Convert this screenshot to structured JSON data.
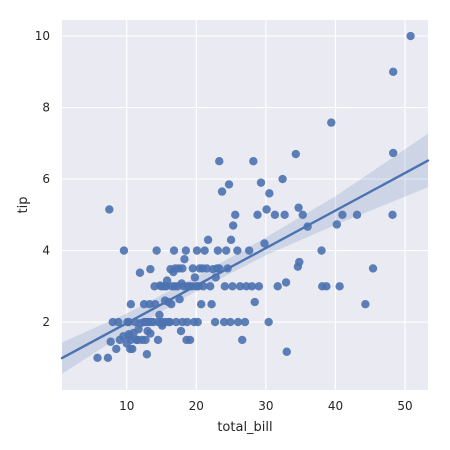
{
  "chart_data": {
    "type": "scatter",
    "title": "",
    "xlabel": "total_bill",
    "ylabel": "tip",
    "xlim": [
      0.7,
      53.3
    ],
    "ylim": [
      0.1,
      10.45
    ],
    "xticks": [
      10,
      20,
      30,
      40,
      50
    ],
    "yticks": [
      2,
      4,
      6,
      8,
      10
    ],
    "grid": true,
    "colors": {
      "background": "#eaeaf2",
      "grid": "#ffffff",
      "point": "#4c72b0",
      "line": "#4c72b0",
      "band": "#4c72b0"
    },
    "regression": {
      "slope": 0.105,
      "intercept": 0.92
    },
    "confidence_band": {
      "x": [
        0.7,
        10,
        20,
        30,
        40,
        53.3
      ],
      "lower": [
        0.55,
        1.72,
        2.87,
        3.87,
        4.72,
        5.77
      ],
      "upper": [
        1.43,
        2.24,
        3.27,
        4.37,
        5.52,
        7.27
      ]
    },
    "points": [
      [
        5.8,
        1.0
      ],
      [
        7.3,
        1.0
      ],
      [
        7.5,
        5.15
      ],
      [
        7.7,
        1.45
      ],
      [
        8.0,
        2.0
      ],
      [
        8.5,
        1.25
      ],
      [
        8.8,
        2.0
      ],
      [
        9.0,
        1.5
      ],
      [
        9.5,
        1.6
      ],
      [
        9.6,
        4.0
      ],
      [
        10.0,
        1.4
      ],
      [
        10.1,
        2.0
      ],
      [
        10.3,
        1.66
      ],
      [
        10.3,
        2.0
      ],
      [
        10.4,
        1.6
      ],
      [
        10.5,
        1.25
      ],
      [
        10.6,
        1.5
      ],
      [
        10.6,
        2.5
      ],
      [
        10.8,
        1.25
      ],
      [
        11.0,
        1.7
      ],
      [
        11.2,
        2.0
      ],
      [
        11.4,
        1.5
      ],
      [
        11.6,
        1.5
      ],
      [
        11.7,
        1.8
      ],
      [
        11.9,
        3.38
      ],
      [
        12.0,
        1.97
      ],
      [
        12.2,
        1.5
      ],
      [
        12.5,
        2.0
      ],
      [
        12.5,
        2.5
      ],
      [
        12.7,
        2.0
      ],
      [
        12.7,
        1.5
      ],
      [
        12.9,
        1.1
      ],
      [
        13.0,
        2.0
      ],
      [
        13.0,
        1.75
      ],
      [
        13.1,
        2.0
      ],
      [
        13.3,
        2.5
      ],
      [
        13.4,
        1.68
      ],
      [
        13.4,
        3.48
      ],
      [
        13.5,
        2.0
      ],
      [
        13.8,
        2.0
      ],
      [
        14.0,
        3.0
      ],
      [
        14.1,
        2.5
      ],
      [
        14.3,
        4.0
      ],
      [
        14.5,
        2.0
      ],
      [
        14.5,
        1.5
      ],
      [
        14.7,
        2.2
      ],
      [
        14.8,
        3.02
      ],
      [
        15.0,
        2.0
      ],
      [
        15.0,
        1.96
      ],
      [
        15.0,
        3.0
      ],
      [
        15.1,
        1.9
      ],
      [
        15.4,
        3.0
      ],
      [
        15.5,
        2.0
      ],
      [
        15.5,
        2.6
      ],
      [
        15.7,
        3.0
      ],
      [
        15.8,
        3.16
      ],
      [
        16.0,
        2.0
      ],
      [
        16.0,
        2.56
      ],
      [
        16.2,
        2.0
      ],
      [
        16.3,
        3.48
      ],
      [
        16.4,
        2.5
      ],
      [
        16.5,
        3.0
      ],
      [
        16.7,
        3.4
      ],
      [
        16.8,
        4.0
      ],
      [
        16.9,
        3.0
      ],
      [
        17.0,
        3.5
      ],
      [
        17.1,
        2.0
      ],
      [
        17.3,
        3.0
      ],
      [
        17.5,
        3.5
      ],
      [
        17.6,
        2.64
      ],
      [
        17.8,
        1.75
      ],
      [
        17.9,
        3.08
      ],
      [
        18.0,
        2.0
      ],
      [
        18.0,
        3.5
      ],
      [
        18.2,
        3.0
      ],
      [
        18.3,
        3.76
      ],
      [
        18.5,
        4.0
      ],
      [
        18.6,
        1.5
      ],
      [
        18.7,
        2.0
      ],
      [
        18.8,
        3.0
      ],
      [
        19.0,
        3.0
      ],
      [
        19.1,
        1.5
      ],
      [
        19.4,
        3.0
      ],
      [
        19.5,
        3.5
      ],
      [
        19.7,
        2.0
      ],
      [
        19.8,
        3.25
      ],
      [
        20.0,
        3.0
      ],
      [
        20.1,
        4.0
      ],
      [
        20.2,
        2.0
      ],
      [
        20.3,
        3.0
      ],
      [
        20.5,
        3.5
      ],
      [
        20.7,
        2.5
      ],
      [
        20.9,
        3.5
      ],
      [
        21.0,
        3.0
      ],
      [
        21.2,
        4.0
      ],
      [
        21.5,
        3.5
      ],
      [
        21.7,
        4.3
      ],
      [
        22.0,
        3.0
      ],
      [
        22.2,
        2.5
      ],
      [
        22.4,
        3.48
      ],
      [
        22.7,
        2.0
      ],
      [
        22.8,
        3.25
      ],
      [
        23.0,
        3.5
      ],
      [
        23.1,
        4.0
      ],
      [
        23.3,
        6.5
      ],
      [
        23.3,
        3.5
      ],
      [
        23.7,
        5.65
      ],
      [
        24.0,
        2.0
      ],
      [
        24.1,
        3.0
      ],
      [
        24.3,
        4.0
      ],
      [
        24.5,
        3.5
      ],
      [
        24.7,
        5.85
      ],
      [
        24.9,
        2.0
      ],
      [
        25.0,
        4.3
      ],
      [
        25.2,
        3.0
      ],
      [
        25.3,
        4.7
      ],
      [
        25.6,
        5.0
      ],
      [
        25.9,
        4.0
      ],
      [
        26.0,
        2.0
      ],
      [
        26.3,
        3.0
      ],
      [
        26.6,
        1.5
      ],
      [
        27.0,
        2.0
      ],
      [
        27.2,
        3.0
      ],
      [
        27.6,
        4.0
      ],
      [
        28.0,
        3.0
      ],
      [
        28.2,
        6.5
      ],
      [
        28.4,
        2.56
      ],
      [
        28.8,
        5.0
      ],
      [
        29.0,
        3.0
      ],
      [
        29.3,
        5.9
      ],
      [
        29.8,
        4.2
      ],
      [
        30.1,
        5.15
      ],
      [
        30.4,
        2.0
      ],
      [
        30.5,
        5.6
      ],
      [
        31.3,
        5.0
      ],
      [
        31.7,
        3.0
      ],
      [
        32.4,
        6.0
      ],
      [
        32.7,
        5.0
      ],
      [
        32.9,
        3.11
      ],
      [
        33.0,
        1.17
      ],
      [
        34.3,
        6.7
      ],
      [
        34.6,
        3.55
      ],
      [
        34.7,
        5.2
      ],
      [
        34.8,
        3.68
      ],
      [
        35.3,
        5.0
      ],
      [
        36.0,
        4.67
      ],
      [
        38.0,
        4.0
      ],
      [
        38.1,
        3.0
      ],
      [
        38.7,
        3.0
      ],
      [
        39.4,
        7.58
      ],
      [
        40.2,
        4.73
      ],
      [
        40.6,
        3.0
      ],
      [
        41.0,
        5.0
      ],
      [
        43.1,
        5.0
      ],
      [
        44.3,
        2.5
      ],
      [
        45.4,
        3.5
      ],
      [
        48.2,
        5.0
      ],
      [
        48.3,
        6.73
      ],
      [
        48.3,
        9.0
      ],
      [
        50.8,
        10.0
      ]
    ]
  }
}
